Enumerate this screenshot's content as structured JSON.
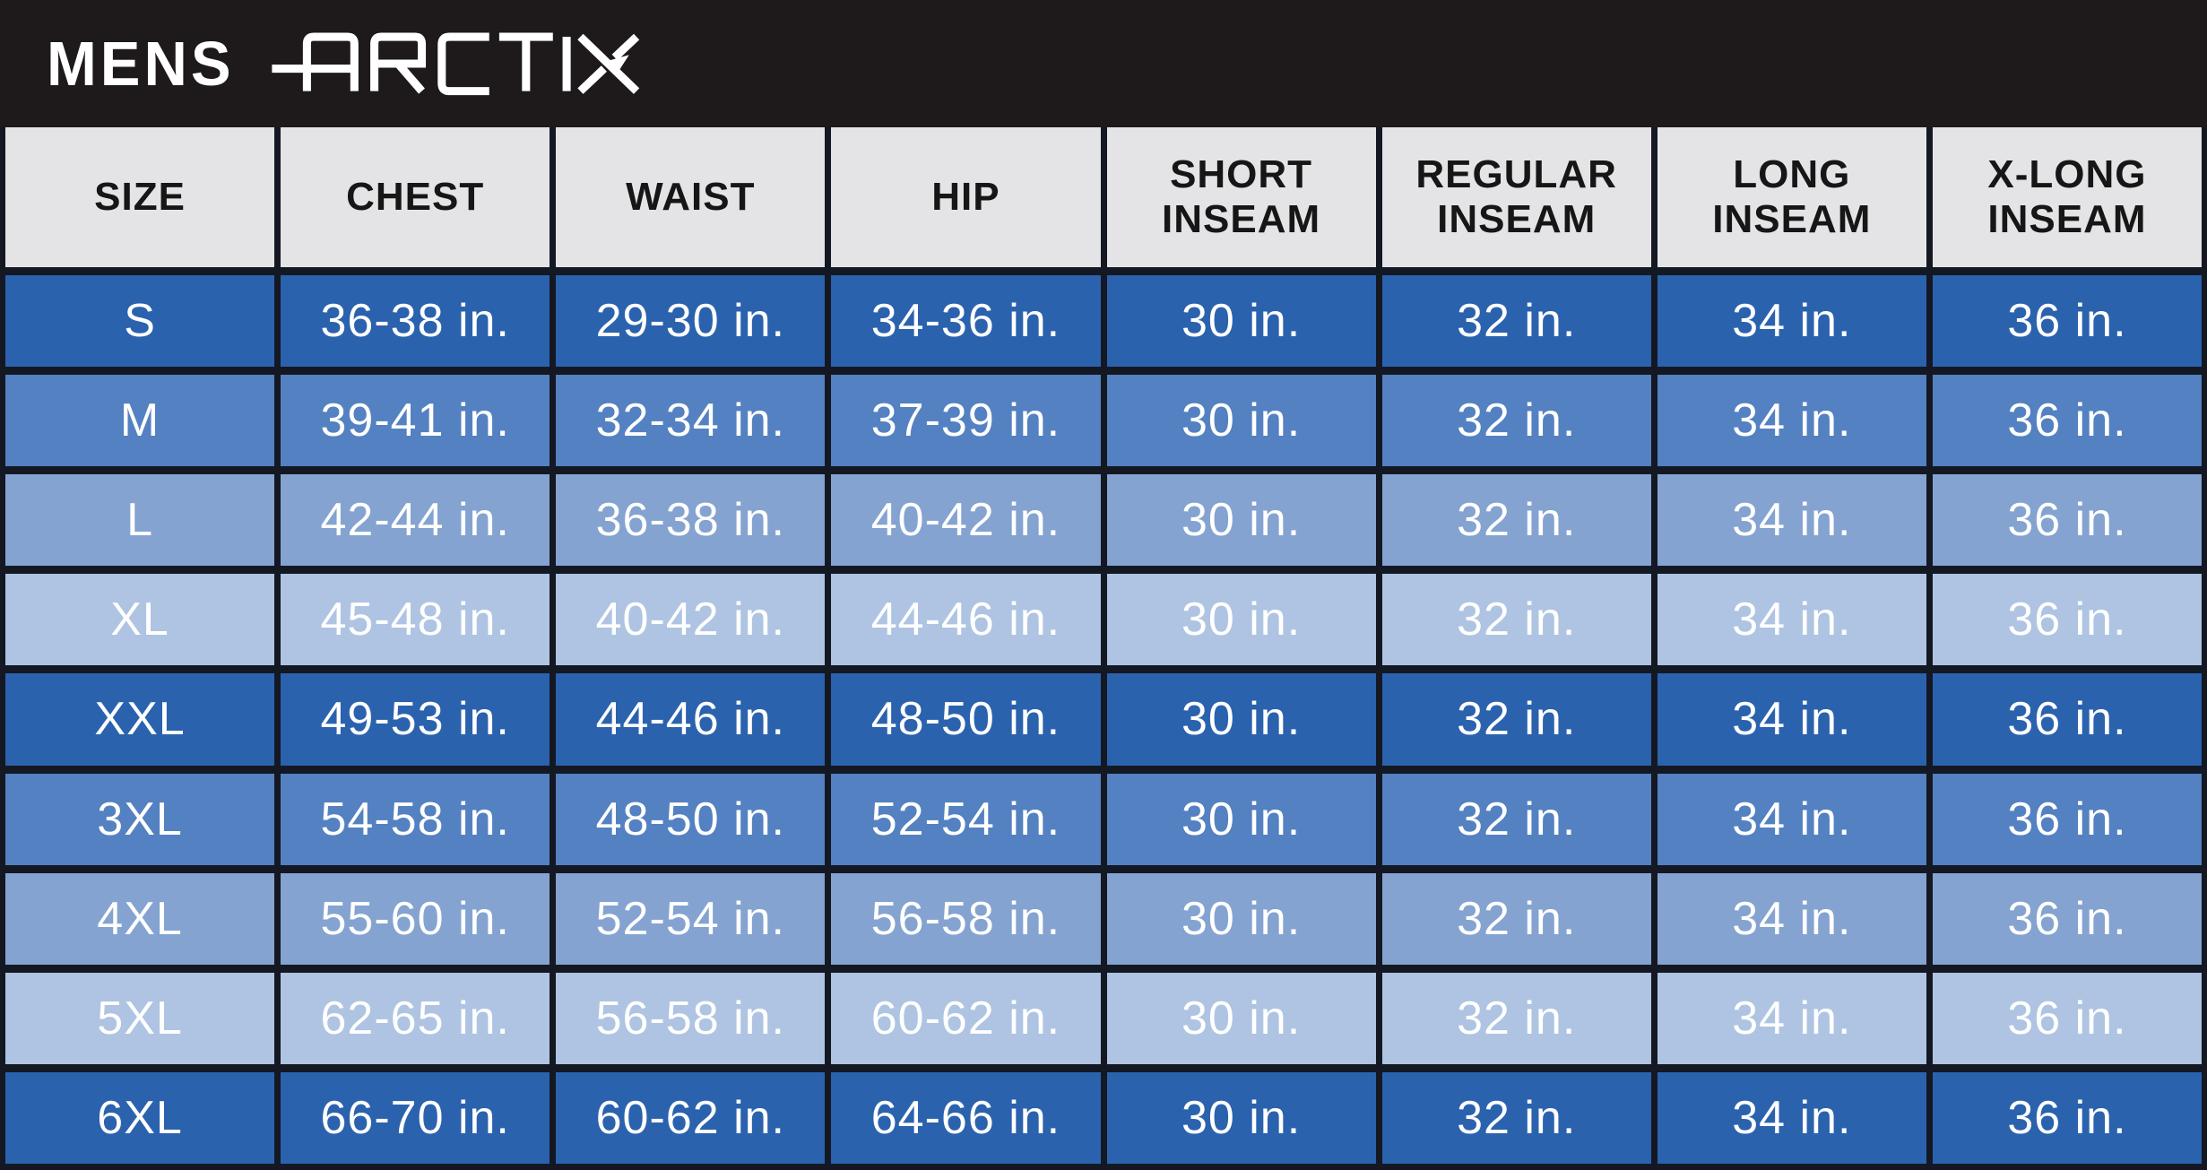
{
  "banner": {
    "title": "MENS",
    "brand": "ARCTIX"
  },
  "chart_data": {
    "type": "table",
    "title": "MENS ARCTIX sizing chart",
    "columns": [
      "SIZE",
      "CHEST",
      "WAIST",
      "HIP",
      "SHORT\nINSEAM",
      "REGULAR\nINSEAM",
      "LONG\nINSEAM",
      "X-LONG\nINSEAM"
    ],
    "rows": [
      [
        "S",
        "36-38 in.",
        "29-30 in.",
        "34-36 in.",
        "30 in.",
        "32 in.",
        "34 in.",
        "36 in."
      ],
      [
        "M",
        "39-41 in.",
        "32-34 in.",
        "37-39 in.",
        "30 in.",
        "32 in.",
        "34 in.",
        "36 in."
      ],
      [
        "L",
        "42-44 in.",
        "36-38 in.",
        "40-42 in.",
        "30 in.",
        "32 in.",
        "34 in.",
        "36 in."
      ],
      [
        "XL",
        "45-48 in.",
        "40-42 in.",
        "44-46 in.",
        "30 in.",
        "32 in.",
        "34 in.",
        "36 in."
      ],
      [
        "XXL",
        "49-53 in.",
        "44-46 in.",
        "48-50 in.",
        "30 in.",
        "32 in.",
        "34 in.",
        "36 in."
      ],
      [
        "3XL",
        "54-58 in.",
        "48-50 in.",
        "52-54 in.",
        "30 in.",
        "32 in.",
        "34 in.",
        "36 in."
      ],
      [
        "4XL",
        "55-60 in.",
        "52-54 in.",
        "56-58 in.",
        "30 in.",
        "32 in.",
        "34 in.",
        "36 in."
      ],
      [
        "5XL",
        "62-65 in.",
        "56-58 in.",
        "60-62 in.",
        "30 in.",
        "32 in.",
        "34 in.",
        "36 in."
      ],
      [
        "6XL",
        "66-70 in.",
        "60-62 in.",
        "64-66 in.",
        "30 in.",
        "32 in.",
        "34 in.",
        "36 in."
      ]
    ],
    "layout_hints": {
      "row_shade_cycle": "dark, medium, light, pale — repeating every 4 rows",
      "grid": "dark navy separators between all cells"
    }
  },
  "colors": {
    "banner_bg": "#1e191a",
    "grid_line": "#141823",
    "header_bg": "#e4e4e6",
    "header_text": "#161616",
    "cell_text": "#ffffff",
    "row_shades": [
      "#2b62ae",
      "#5481c1",
      "#84a3d1",
      "#aec4e2"
    ]
  }
}
